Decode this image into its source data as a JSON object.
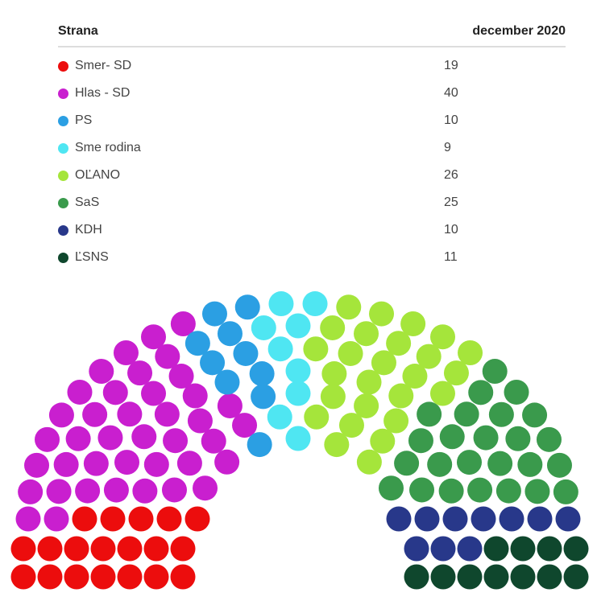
{
  "chart_data": {
    "type": "parliament",
    "total_seats": 150,
    "columns": [
      "Strana",
      "december 2020"
    ],
    "series": [
      {
        "name": "Smer- SD",
        "value": 19,
        "color": "#ec0d0d"
      },
      {
        "name": "Hlas - SD",
        "value": 40,
        "color": "#c91fcf"
      },
      {
        "name": "PS",
        "value": 10,
        "color": "#2b9fe3"
      },
      {
        "name": "Sme rodina",
        "value": 9,
        "color": "#4fe6f2"
      },
      {
        "name": "OĽANO",
        "value": 26,
        "color": "#a5e53b"
      },
      {
        "name": "SaS",
        "value": 25,
        "color": "#3a9a4c"
      },
      {
        "name": "KDH",
        "value": 10,
        "color": "#28388a"
      },
      {
        "name": "ĽSNS",
        "value": 11,
        "color": "#0f472d"
      }
    ]
  }
}
